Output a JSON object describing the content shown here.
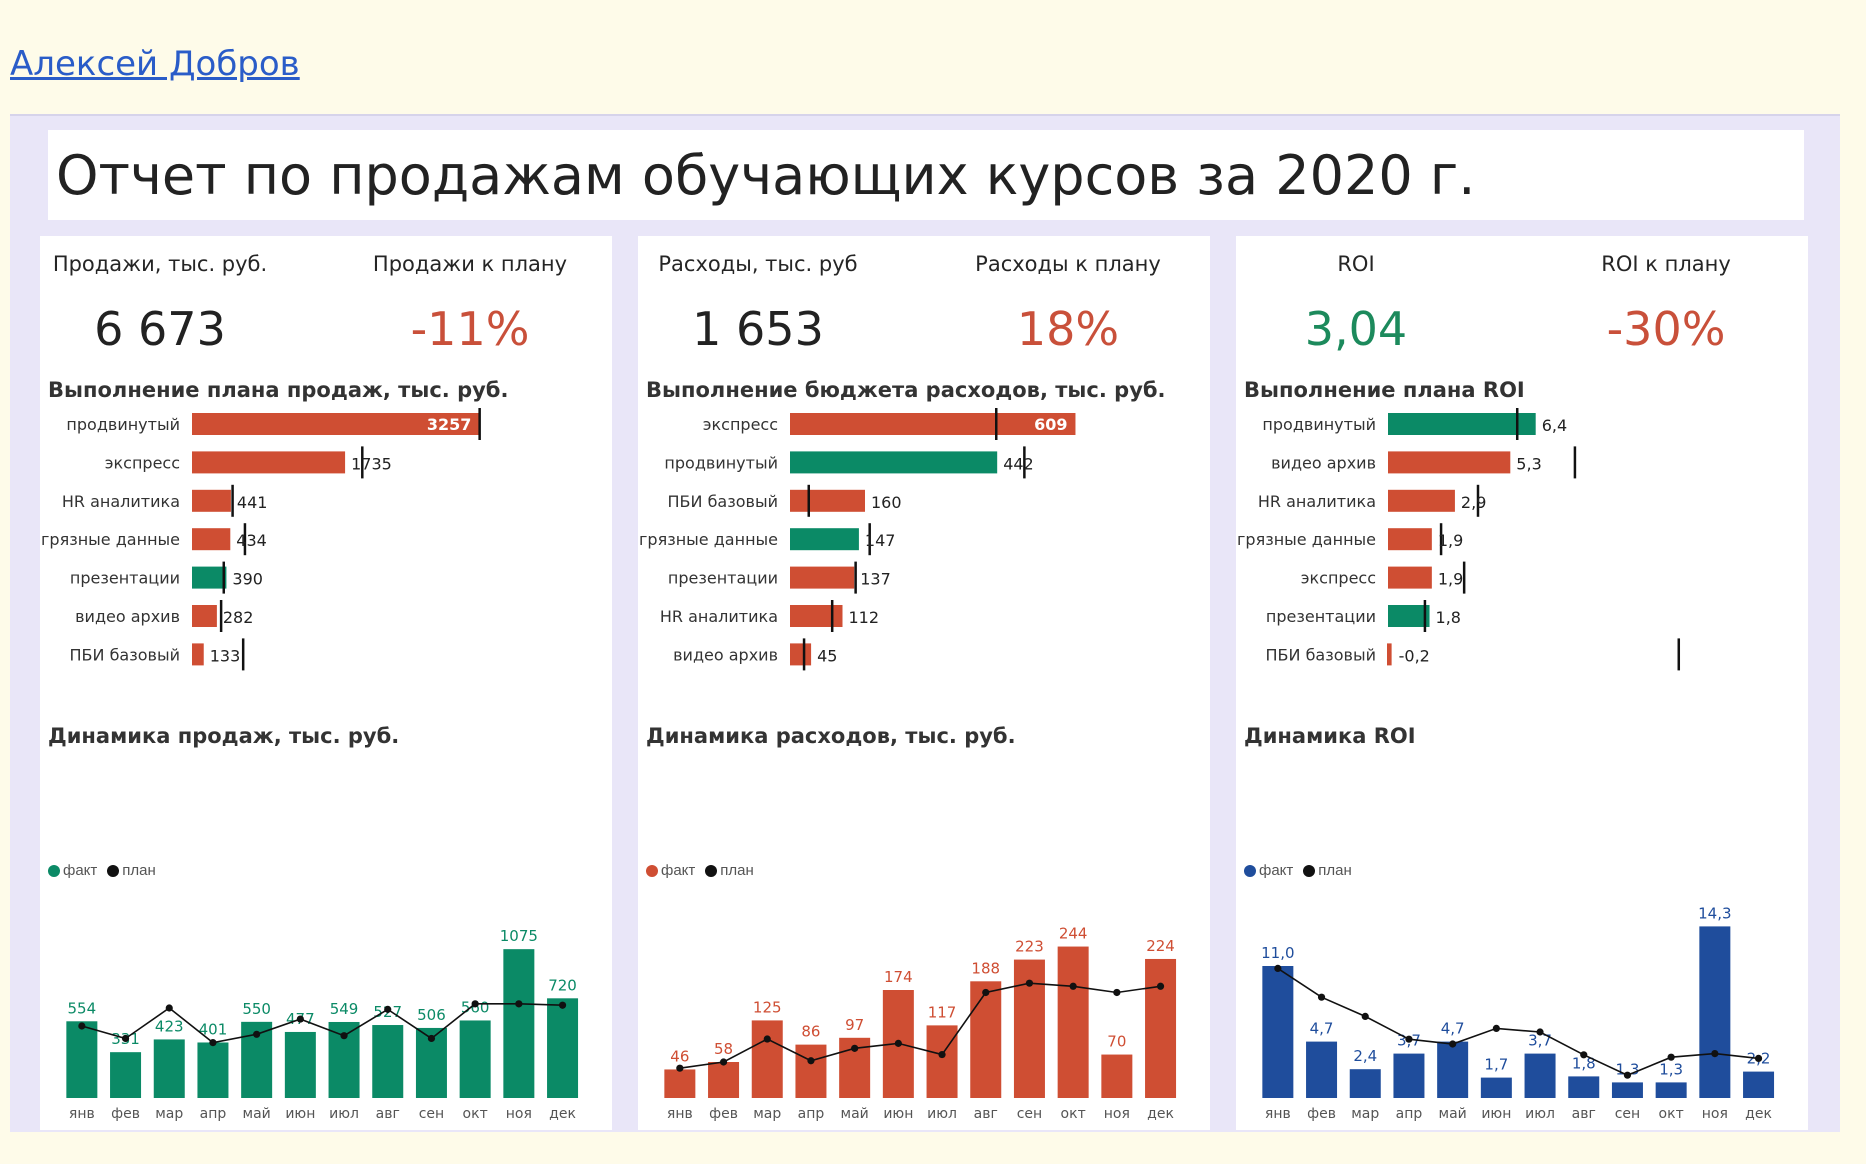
{
  "author": "Алексей Добров",
  "report_title": "Отчет по продажам обучающих курсов за 2020 г.",
  "colors": {
    "red": "#cf4e33",
    "green": "#0b8a66",
    "blue": "#1f4d9c",
    "black": "#111111",
    "red_text": "#c9503a",
    "green_text": "#1c8a5c"
  },
  "months": [
    "янв",
    "фев",
    "мар",
    "апр",
    "май",
    "июн",
    "июл",
    "авг",
    "сен",
    "окт",
    "ноя",
    "дек"
  ],
  "legend": {
    "fact": "факт",
    "plan": "план"
  },
  "panels": [
    {
      "kpi": [
        {
          "label": "Продажи, тыс. руб.",
          "value": "6 673",
          "tone": "dark"
        },
        {
          "label": "Продажи к плану",
          "value": "-11%",
          "tone": "red"
        }
      ],
      "bullet_title": "Выполнение плана продаж, тыс. руб.",
      "trend_title": "Динамика продаж, тыс. руб."
    },
    {
      "kpi": [
        {
          "label": "Расходы, тыс. руб",
          "value": "1 653",
          "tone": "dark"
        },
        {
          "label": "Расходы к плану",
          "value": "18%",
          "tone": "red"
        }
      ],
      "bullet_title": "Выполнение бюджета расходов, тыс. руб.",
      "trend_title": "Динамика расходов, тыс. руб."
    },
    {
      "kpi": [
        {
          "label": "ROI",
          "value": "3,04",
          "tone": "green"
        },
        {
          "label": "ROI к плану",
          "value": "-30%",
          "tone": "red"
        }
      ],
      "bullet_title": "Выполнение плана ROI",
      "trend_title": "Динамика ROI"
    }
  ],
  "chart_data": [
    {
      "type": "bar",
      "title": "Выполнение плана продаж, тыс. руб.",
      "categories": [
        "продвинутый",
        "экспресс",
        "HR аналитика",
        "грязные данные",
        "презентации",
        "видео архив",
        "ПБИ базовый"
      ],
      "labels": [
        "3257",
        "1735",
        "441",
        "434",
        "390",
        "282",
        "133"
      ],
      "values": [
        3257,
        1735,
        441,
        434,
        390,
        282,
        133
      ],
      "targets": [
        3260,
        1930,
        460,
        600,
        360,
        330,
        580
      ],
      "colors": [
        "red",
        "red",
        "red",
        "red",
        "green",
        "red",
        "red"
      ],
      "label_inside": [
        true,
        false,
        false,
        false,
        false,
        false,
        false
      ],
      "xlim": [
        0,
        3400
      ]
    },
    {
      "type": "bar",
      "title": "Выполнение бюджета расходов, тыс. руб.",
      "categories": [
        "экспресс",
        "продвинутый",
        "ПБИ базовый",
        "грязные данные",
        "презентации",
        "HR аналитика",
        "видео архив"
      ],
      "labels": [
        "609",
        "442",
        "160",
        "147",
        "137",
        "112",
        "45"
      ],
      "values": [
        609,
        442,
        160,
        147,
        137,
        112,
        45
      ],
      "targets": [
        440,
        500,
        40,
        170,
        140,
        90,
        30
      ],
      "colors": [
        "red",
        "green",
        "red",
        "green",
        "red",
        "red",
        "red"
      ],
      "label_inside": [
        true,
        false,
        false,
        false,
        false,
        false,
        false
      ],
      "xlim": [
        0,
        640
      ]
    },
    {
      "type": "bar",
      "title": "Выполнение плана ROI",
      "categories": [
        "продвинутый",
        "видео архив",
        "HR аналитика",
        "грязные данные",
        "экспресс",
        "презентации",
        "ПБИ базовый"
      ],
      "labels": [
        "6,4",
        "5,3",
        "2,9",
        "1,9",
        "1,9",
        "1,8",
        "-0,2"
      ],
      "values": [
        6.4,
        5.3,
        2.9,
        1.9,
        1.9,
        1.8,
        -0.2
      ],
      "targets": [
        5.6,
        8.1,
        3.9,
        2.3,
        3.3,
        1.6,
        12.6
      ],
      "colors": [
        "green",
        "red",
        "red",
        "red",
        "red",
        "green",
        "red"
      ],
      "label_inside": [
        false,
        false,
        false,
        false,
        false,
        false,
        false
      ],
      "xlim": [
        0,
        13
      ]
    },
    {
      "type": "bar",
      "title": "Динамика продаж, тыс. руб.",
      "categories": [
        "янв",
        "фев",
        "мар",
        "апр",
        "май",
        "июн",
        "июл",
        "авг",
        "сен",
        "окт",
        "ноя",
        "дек"
      ],
      "series": [
        {
          "name": "факт",
          "values": [
            554,
            331,
            423,
            401,
            550,
            477,
            549,
            527,
            506,
            560,
            1075,
            720
          ],
          "labels": [
            "554",
            "331",
            "423",
            "401",
            "550",
            "477",
            "549",
            "527",
            "506",
            "560",
            "1075",
            "720"
          ]
        },
        {
          "name": "план",
          "values": [
            520,
            430,
            650,
            400,
            460,
            570,
            450,
            640,
            430,
            680,
            680,
            670
          ]
        }
      ],
      "ylim": [
        0,
        1300
      ]
    },
    {
      "type": "bar",
      "title": "Динамика расходов, тыс. руб.",
      "categories": [
        "янв",
        "фев",
        "мар",
        "апр",
        "май",
        "июн",
        "июл",
        "авг",
        "сен",
        "окт",
        "ноя",
        "дек"
      ],
      "series": [
        {
          "name": "факт",
          "values": [
            46,
            58,
            125,
            86,
            97,
            174,
            117,
            188,
            223,
            244,
            70,
            224
          ],
          "labels": [
            "46",
            "58",
            "125",
            "86",
            "97",
            "174",
            "117",
            "188",
            "223",
            "244",
            "70",
            "224"
          ]
        },
        {
          "name": "план",
          "values": [
            48,
            58,
            95,
            60,
            80,
            88,
            70,
            170,
            185,
            180,
            170,
            180
          ]
        }
      ],
      "ylim": [
        0,
        290
      ]
    },
    {
      "type": "bar",
      "title": "Динамика ROI",
      "categories": [
        "янв",
        "фев",
        "мар",
        "апр",
        "май",
        "июн",
        "июл",
        "авг",
        "сен",
        "окт",
        "ноя",
        "дек"
      ],
      "series": [
        {
          "name": "факт",
          "values": [
            11.0,
            4.7,
            2.4,
            3.7,
            4.7,
            1.7,
            3.7,
            1.8,
            1.3,
            1.3,
            14.3,
            2.2
          ],
          "labels": [
            "11,0",
            "4,7",
            "2,4",
            "3,7",
            "4,7",
            "1,7",
            "3,7",
            "1,8",
            "1,3",
            "1,3",
            "14,3",
            "2,2"
          ]
        },
        {
          "name": "план",
          "values": [
            10.8,
            8.4,
            6.8,
            4.9,
            4.5,
            5.8,
            5.5,
            3.6,
            1.9,
            3.4,
            3.7,
            3.3
          ]
        }
      ],
      "ylim": [
        0,
        15
      ]
    }
  ]
}
